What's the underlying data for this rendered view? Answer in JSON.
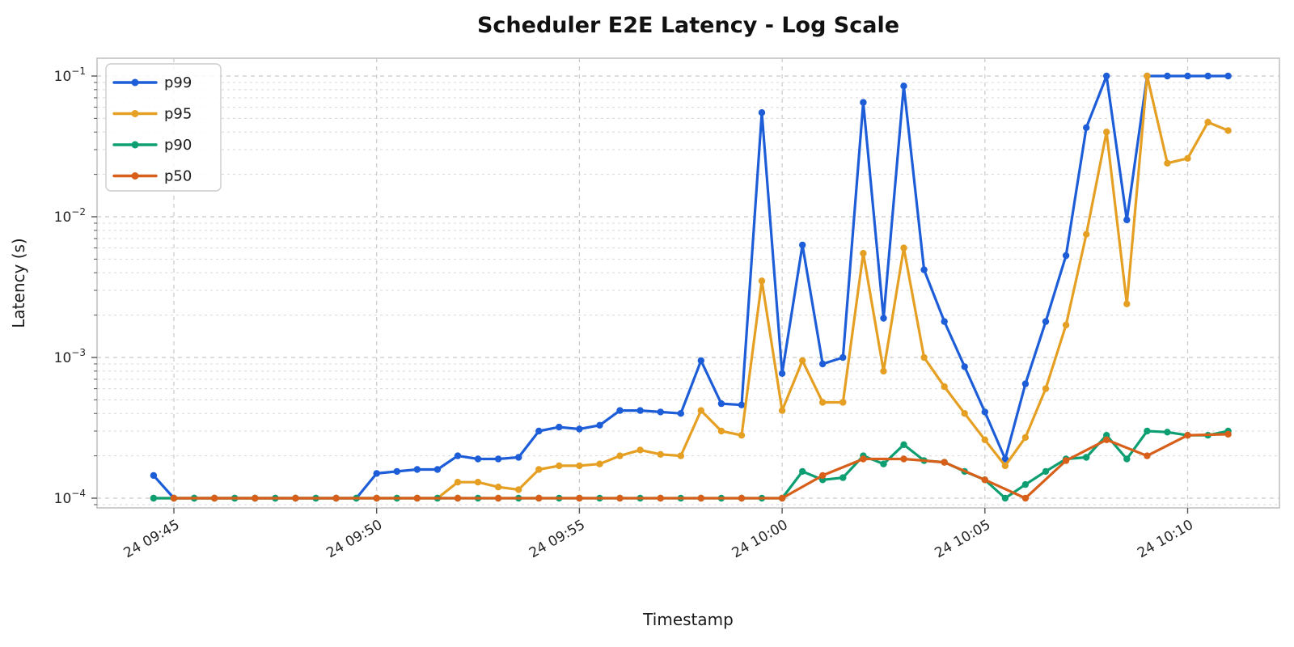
{
  "title": "Scheduler E2E Latency - Log Scale",
  "xlabel": "Timestamp",
  "ylabel": "Latency (s)",
  "legend": [
    "p99",
    "p95",
    "p90",
    "p50"
  ],
  "x_ticks": [
    {
      "time": "09:45:00",
      "label": "24 09:45"
    },
    {
      "time": "09:50:00",
      "label": "24 09:50"
    },
    {
      "time": "09:55:00",
      "label": "24 09:55"
    },
    {
      "time": "10:00:00",
      "label": "24 10:00"
    },
    {
      "time": "10:05:00",
      "label": "24 10:05"
    },
    {
      "time": "10:10:00",
      "label": "24 10:10"
    }
  ],
  "y_ticks": [
    {
      "exponent": "-1",
      "value": 0.1
    },
    {
      "exponent": "-2",
      "value": 0.01
    },
    {
      "exponent": "-3",
      "value": 0.001
    },
    {
      "exponent": "-4",
      "value": 0.0001
    }
  ],
  "colors": {
    "p99": "#1d5dd8",
    "p95": "#e5a024",
    "p90": "#0d9e72",
    "p50": "#d75f1a",
    "grid_major": "#c9c9c9",
    "grid_minor": "#d8d8d8",
    "spine": "#c2c2c2",
    "tick": "#555555"
  },
  "chart_data": {
    "type": "line",
    "title": "Scheduler E2E Latency - Log Scale",
    "xlabel": "Timestamp",
    "ylabel": "Latency (s)",
    "y_scale": "log",
    "ylim": [
      8.5e-05,
      0.135
    ],
    "xlim": [
      "09:43:10",
      "10:12:20"
    ],
    "grid": true,
    "legend_position": "upper left",
    "series": [
      {
        "name": "p99",
        "color": "#1d5dd8",
        "x": [
          "09:44:30",
          "09:45:00",
          "09:45:30",
          "09:46:00",
          "09:46:30",
          "09:47:00",
          "09:47:30",
          "09:48:00",
          "09:48:30",
          "09:49:00",
          "09:49:30",
          "09:50:00",
          "09:50:30",
          "09:51:00",
          "09:51:30",
          "09:52:00",
          "09:52:30",
          "09:53:00",
          "09:53:30",
          "09:54:00",
          "09:54:30",
          "09:55:00",
          "09:55:30",
          "09:56:00",
          "09:56:30",
          "09:57:00",
          "09:57:30",
          "09:58:00",
          "09:58:30",
          "09:59:00",
          "09:59:30",
          "10:00:00",
          "10:00:30",
          "10:01:00",
          "10:01:30",
          "10:02:00",
          "10:02:30",
          "10:03:00",
          "10:03:30",
          "10:04:00",
          "10:04:30",
          "10:05:00",
          "10:05:30",
          "10:06:00",
          "10:06:30",
          "10:07:00",
          "10:07:30",
          "10:08:00",
          "10:08:30",
          "10:09:00",
          "10:09:30",
          "10:10:00",
          "10:10:30",
          "10:11:00"
        ],
        "values": [
          0.000145,
          0.0001,
          0.0001,
          0.0001,
          0.0001,
          0.0001,
          0.0001,
          0.0001,
          0.0001,
          0.0001,
          0.0001,
          0.00015,
          0.000155,
          0.00016,
          0.00016,
          0.0002,
          0.00019,
          0.00019,
          0.000195,
          0.0003,
          0.00032,
          0.00031,
          0.00033,
          0.00042,
          0.00042,
          0.00041,
          0.0004,
          0.00095,
          0.00047,
          0.00046,
          0.055,
          0.00077,
          0.0063,
          0.0009,
          0.001,
          0.065,
          0.0019,
          0.085,
          0.0042,
          0.0018,
          0.00086,
          0.00041,
          0.00019,
          0.00065,
          0.0018,
          0.0053,
          0.043,
          0.1,
          0.0095,
          0.1,
          0.1,
          0.1,
          0.1,
          0.1
        ]
      },
      {
        "name": "p95",
        "color": "#e5a024",
        "x": [
          "09:44:30",
          "09:45:00",
          "09:45:30",
          "09:46:00",
          "09:46:30",
          "09:47:00",
          "09:47:30",
          "09:48:00",
          "09:48:30",
          "09:49:00",
          "09:49:30",
          "09:50:00",
          "09:50:30",
          "09:51:00",
          "09:51:30",
          "09:52:00",
          "09:52:30",
          "09:53:00",
          "09:53:30",
          "09:54:00",
          "09:54:30",
          "09:55:00",
          "09:55:30",
          "09:56:00",
          "09:56:30",
          "09:57:00",
          "09:57:30",
          "09:58:00",
          "09:58:30",
          "09:59:00",
          "09:59:30",
          "10:00:00",
          "10:00:30",
          "10:01:00",
          "10:01:30",
          "10:02:00",
          "10:02:30",
          "10:03:00",
          "10:03:30",
          "10:04:00",
          "10:04:30",
          "10:05:00",
          "10:05:30",
          "10:06:00",
          "10:06:30",
          "10:07:00",
          "10:07:30",
          "10:08:00",
          "10:08:30",
          "10:09:00",
          "10:09:30",
          "10:10:00",
          "10:10:30",
          "10:11:00"
        ],
        "values": [
          0.0001,
          0.0001,
          0.0001,
          0.0001,
          0.0001,
          0.0001,
          0.0001,
          0.0001,
          0.0001,
          0.0001,
          0.0001,
          0.0001,
          0.0001,
          0.0001,
          0.0001,
          0.00013,
          0.00013,
          0.00012,
          0.000115,
          0.00016,
          0.00017,
          0.00017,
          0.000175,
          0.0002,
          0.00022,
          0.000205,
          0.0002,
          0.00042,
          0.0003,
          0.00028,
          0.0035,
          0.00042,
          0.00095,
          0.00048,
          0.00048,
          0.0055,
          0.0008,
          0.006,
          0.001,
          0.00062,
          0.0004,
          0.00026,
          0.00017,
          0.00027,
          0.0006,
          0.0017,
          0.0075,
          0.04,
          0.0024,
          0.1,
          0.024,
          0.026,
          0.047,
          0.041
        ]
      },
      {
        "name": "p90",
        "color": "#0d9e72",
        "x": [
          "09:44:30",
          "09:45:00",
          "09:45:30",
          "09:46:00",
          "09:46:30",
          "09:47:00",
          "09:47:30",
          "09:48:00",
          "09:48:30",
          "09:49:00",
          "09:49:30",
          "09:50:00",
          "09:50:30",
          "09:51:00",
          "09:51:30",
          "09:52:00",
          "09:52:30",
          "09:53:00",
          "09:53:30",
          "09:54:00",
          "09:54:30",
          "09:55:00",
          "09:55:30",
          "09:56:00",
          "09:56:30",
          "09:57:00",
          "09:57:30",
          "09:58:00",
          "09:58:30",
          "09:59:00",
          "09:59:30",
          "10:00:00",
          "10:00:30",
          "10:01:00",
          "10:01:30",
          "10:02:00",
          "10:02:30",
          "10:03:00",
          "10:03:30",
          "10:04:00",
          "10:04:30",
          "10:05:00",
          "10:05:30",
          "10:06:00",
          "10:06:30",
          "10:07:00",
          "10:07:30",
          "10:08:00",
          "10:08:30",
          "10:09:00",
          "10:09:30",
          "10:10:00",
          "10:10:30",
          "10:11:00"
        ],
        "values": [
          0.0001,
          0.0001,
          0.0001,
          0.0001,
          0.0001,
          0.0001,
          0.0001,
          0.0001,
          0.0001,
          0.0001,
          0.0001,
          0.0001,
          0.0001,
          0.0001,
          0.0001,
          0.0001,
          0.0001,
          0.0001,
          0.0001,
          0.0001,
          0.0001,
          0.0001,
          0.0001,
          0.0001,
          0.0001,
          0.0001,
          0.0001,
          0.0001,
          0.0001,
          0.0001,
          0.0001,
          0.0001,
          0.000155,
          0.000135,
          0.00014,
          0.0002,
          0.000175,
          0.00024,
          0.000185,
          0.00018,
          0.000155,
          0.000135,
          0.0001,
          0.000125,
          0.000155,
          0.00019,
          0.000195,
          0.00028,
          0.00019,
          0.0003,
          0.000295,
          0.00028,
          0.00028,
          0.0003
        ]
      },
      {
        "name": "p50",
        "color": "#d75f1a",
        "x": [
          "09:45:00",
          "09:46:00",
          "09:47:00",
          "09:48:00",
          "09:49:00",
          "09:50:00",
          "09:51:00",
          "09:52:00",
          "09:53:00",
          "09:54:00",
          "09:55:00",
          "09:56:00",
          "09:57:00",
          "09:58:00",
          "09:59:00",
          "10:00:00",
          "10:01:00",
          "10:02:00",
          "10:03:00",
          "10:04:00",
          "10:05:00",
          "10:06:00",
          "10:07:00",
          "10:08:00",
          "10:09:00",
          "10:10:00",
          "10:11:00"
        ],
        "values": [
          0.0001,
          0.0001,
          0.0001,
          0.0001,
          0.0001,
          0.0001,
          0.0001,
          0.0001,
          0.0001,
          0.0001,
          0.0001,
          0.0001,
          0.0001,
          0.0001,
          0.0001,
          0.0001,
          0.000145,
          0.00019,
          0.00019,
          0.00018,
          0.000135,
          0.0001,
          0.000185,
          0.00026,
          0.0002,
          0.00028,
          0.000285
        ]
      }
    ]
  }
}
